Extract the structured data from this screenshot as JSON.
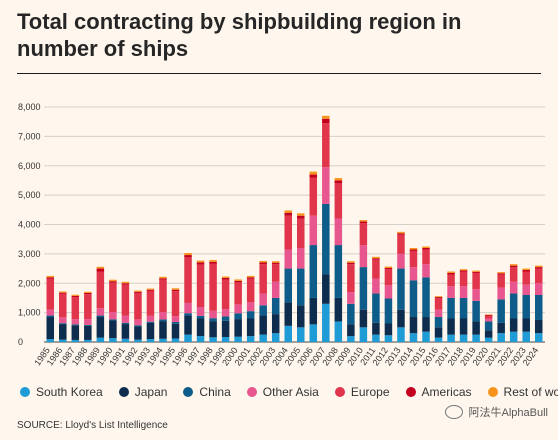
{
  "title": "Total contracting by shipbuilding region in number of ships",
  "source": "SOURCE: Lloyd's List Intelligence",
  "watermark": "阿法牛AlphaBull",
  "chart_data": {
    "type": "bar",
    "stacked": true,
    "title": "Total contracting by shipbuilding region in number of ships",
    "xlabel": "",
    "ylabel": "",
    "ylim": [
      0,
      8000
    ],
    "yticks": [
      "0",
      "1,000",
      "2,000",
      "3,000",
      "4,000",
      "5,000",
      "6,000",
      "7,000",
      "8,000"
    ],
    "grid": true,
    "legend_position": "bottom",
    "categories": [
      "1985",
      "1986",
      "1987",
      "1988",
      "1989",
      "1990",
      "1991",
      "1992",
      "1993",
      "1994",
      "1995",
      "1996",
      "1997",
      "1998",
      "1999",
      "2000",
      "2001",
      "2002",
      "2003",
      "2004",
      "2005",
      "2006",
      "2007",
      "2008",
      "2009",
      "2010",
      "2011",
      "2012",
      "2013",
      "2014",
      "2015",
      "2016",
      "2017",
      "2018",
      "2019",
      "2020",
      "2021",
      "2022",
      "2023",
      "2024"
    ],
    "series": [
      {
        "name": "South Korea",
        "color": "#1f9bd6",
        "values": [
          100,
          80,
          70,
          70,
          150,
          130,
          110,
          80,
          100,
          110,
          120,
          250,
          200,
          160,
          170,
          180,
          200,
          250,
          300,
          550,
          500,
          600,
          1300,
          700,
          200,
          500,
          250,
          230,
          500,
          300,
          350,
          150,
          250,
          250,
          250,
          150,
          300,
          350,
          350,
          300
        ]
      },
      {
        "name": "Japan",
        "color": "#0d2c4e",
        "values": [
          750,
          530,
          500,
          480,
          700,
          600,
          500,
          450,
          550,
          600,
          500,
          650,
          600,
          550,
          550,
          600,
          600,
          650,
          650,
          800,
          750,
          900,
          1000,
          800,
          400,
          600,
          400,
          400,
          600,
          550,
          500,
          350,
          550,
          550,
          450,
          250,
          350,
          450,
          450,
          450
        ]
      },
      {
        "name": "China",
        "color": "#0e5c89",
        "values": [
          50,
          30,
          30,
          30,
          50,
          40,
          40,
          40,
          40,
          60,
          60,
          80,
          90,
          100,
          150,
          200,
          250,
          350,
          550,
          1150,
          1250,
          1800,
          2400,
          1800,
          700,
          1450,
          1000,
          850,
          1400,
          1250,
          1350,
          350,
          700,
          700,
          700,
          300,
          800,
          850,
          800,
          850
        ]
      },
      {
        "name": "Other Asia",
        "color": "#e8568f",
        "values": [
          200,
          200,
          180,
          200,
          250,
          250,
          250,
          200,
          200,
          250,
          200,
          350,
          300,
          250,
          250,
          300,
          300,
          400,
          550,
          650,
          700,
          1000,
          1250,
          900,
          400,
          750,
          500,
          450,
          500,
          450,
          450,
          250,
          400,
          400,
          400,
          100,
          400,
          400,
          350,
          400
        ]
      },
      {
        "name": "Europe",
        "color": "#e0354a",
        "values": [
          1050,
          800,
          750,
          850,
          1250,
          1000,
          1050,
          900,
          850,
          1100,
          850,
          1550,
          1450,
          1600,
          1000,
          750,
          800,
          1000,
          600,
          1150,
          1000,
          1300,
          1500,
          1200,
          950,
          750,
          650,
          550,
          650,
          550,
          500,
          400,
          400,
          500,
          550,
          100,
          450,
          500,
          450,
          500
        ]
      },
      {
        "name": "Americas",
        "color": "#c40020",
        "values": [
          50,
          40,
          40,
          40,
          100,
          50,
          50,
          40,
          40,
          50,
          50,
          80,
          70,
          70,
          60,
          50,
          50,
          60,
          50,
          100,
          100,
          100,
          150,
          100,
          50,
          50,
          50,
          40,
          50,
          50,
          50,
          30,
          50,
          40,
          40,
          20,
          40,
          50,
          50,
          50
        ]
      },
      {
        "name": "Rest of world",
        "color": "#f7941d",
        "values": [
          50,
          40,
          40,
          40,
          60,
          50,
          50,
          40,
          40,
          50,
          50,
          70,
          60,
          60,
          50,
          50,
          50,
          50,
          50,
          80,
          80,
          100,
          100,
          80,
          50,
          50,
          50,
          50,
          50,
          50,
          50,
          30,
          50,
          40,
          40,
          20,
          40,
          50,
          50,
          50
        ]
      }
    ]
  }
}
